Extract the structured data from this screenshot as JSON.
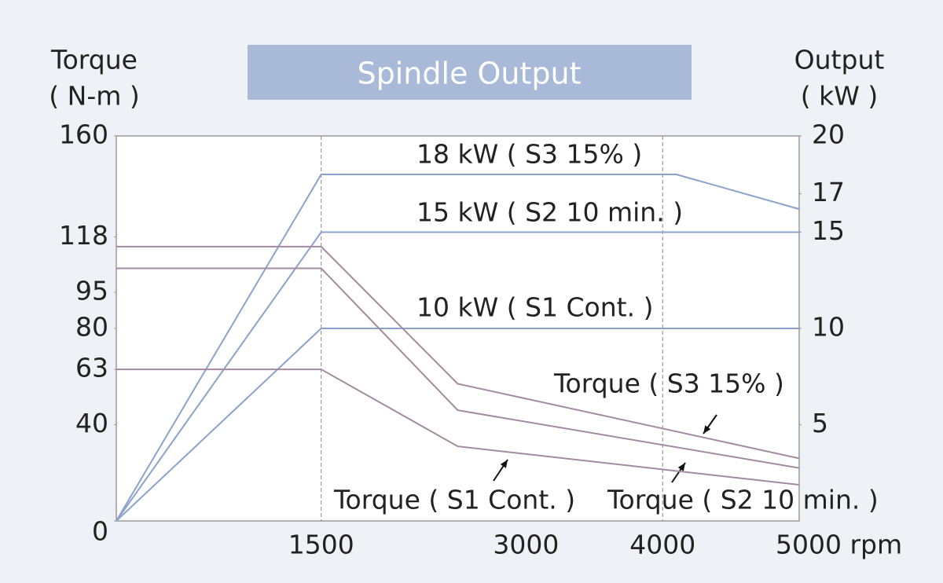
{
  "chart_data": {
    "type": "line",
    "title": "Spindle Output",
    "y_label": [
      "Torque",
      "( N-m )"
    ],
    "y2_label": [
      "Output",
      "( kW )"
    ],
    "xlim": [
      0,
      5000
    ],
    "xticks": [
      1500,
      3000,
      4000,
      {
        "value": 5000,
        "label": "5000 rpm"
      }
    ],
    "x_reference_lines": [
      1500,
      4000
    ],
    "ylim": [
      0,
      160
    ],
    "yticks": [
      0,
      40,
      63,
      80,
      95,
      118,
      160
    ],
    "y2lim": [
      0,
      20
    ],
    "y2ticks": [
      5,
      10,
      15,
      17,
      20
    ],
    "series": [
      {
        "name": "18 kW ( S3 15% )",
        "color": "#8aa3cc",
        "axis": "y2",
        "x": [
          0,
          1500,
          4100,
          5000
        ],
        "values": [
          0,
          18,
          18,
          16.2
        ]
      },
      {
        "name": "15 kW ( S2 10 min. )",
        "color": "#8aa3cc",
        "axis": "y2",
        "x": [
          0,
          1500,
          5000
        ],
        "values": [
          0,
          15,
          15
        ]
      },
      {
        "name": "10 kW ( S1 Cont. )",
        "color": "#8aa3cc",
        "axis": "y2",
        "x": [
          0,
          1500,
          5000
        ],
        "values": [
          0,
          10,
          10
        ]
      },
      {
        "name": "Torque ( S3 15% )",
        "color": "#a48aa0",
        "axis": "y",
        "x": [
          0,
          1500,
          2500,
          5000
        ],
        "values": [
          114,
          114,
          57,
          26
        ]
      },
      {
        "name": "Torque ( S2 10 min. )",
        "color": "#a48aa0",
        "axis": "y",
        "x": [
          0,
          1500,
          2500,
          5000
        ],
        "values": [
          105,
          105,
          46,
          22
        ]
      },
      {
        "name": "Torque ( S1 Cont. )",
        "color": "#a48aa0",
        "axis": "y",
        "x": [
          0,
          1500,
          2500,
          5000
        ],
        "values": [
          63,
          63,
          31,
          15
        ]
      }
    ]
  }
}
